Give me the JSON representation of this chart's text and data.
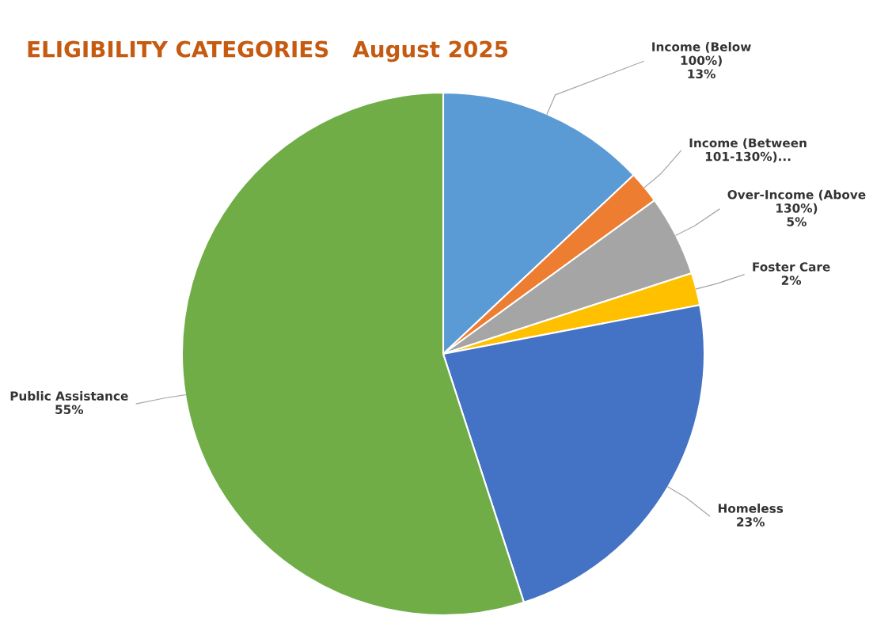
{
  "chart_data": {
    "type": "pie",
    "title": "ELIGIBILITY CATEGORIES   August 2025",
    "categories": [
      "Income (Below\n100%)",
      "Income (Between\n101-130%)...",
      "Over-Income (Above\n130%)",
      "Foster Care",
      "Homeless",
      "Public Assistance"
    ],
    "values": [
      13,
      2,
      5,
      2,
      23,
      55
    ],
    "value_labels": [
      "13%",
      null,
      "5%",
      "2%",
      "23%",
      "55%"
    ],
    "colors": [
      "#5b9bd5",
      "#ed7d31",
      "#a5a5a5",
      "#ffc000",
      "#4472c4",
      "#70ad47"
    ],
    "legend": false
  }
}
